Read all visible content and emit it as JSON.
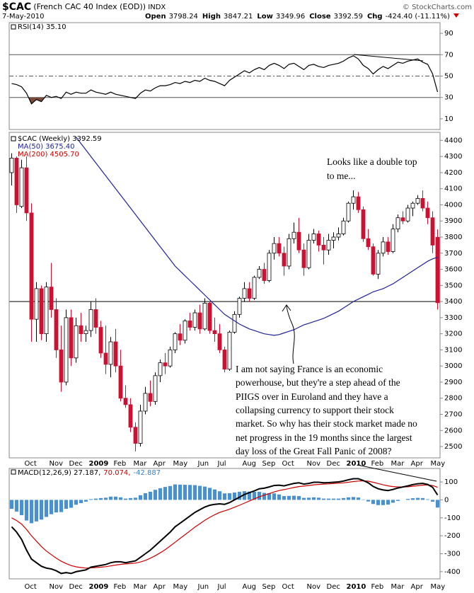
{
  "header": {
    "symbol": "$CAC",
    "name": "(French CAC 40 Index (EOD))",
    "exchange": "INDX",
    "date": "7-May-2010",
    "copyright": "© StockCharts.com",
    "quote": [
      {
        "label": "Open",
        "value": "3798.24"
      },
      {
        "label": "High",
        "value": "3847.21"
      },
      {
        "label": "Low",
        "value": "3349.96"
      },
      {
        "label": "Close",
        "value": "3392.59"
      },
      {
        "label": "Chg",
        "value": "-424.40 (-11.11%)"
      }
    ]
  },
  "chart_data": [
    {
      "type": "line",
      "legend": [
        {
          "text": "RSI(14) 35.10",
          "color": "#000000"
        }
      ],
      "legend_layout": "inline",
      "ylim": [
        0,
        100
      ],
      "yticks": [
        10,
        30,
        50,
        70,
        90
      ],
      "hlines": [
        {
          "value": 70,
          "color": "#555555"
        },
        {
          "value": 50,
          "color": "#555555",
          "dash": "6 3 2 3"
        },
        {
          "value": 30,
          "color": "#555555"
        }
      ],
      "fill_below": 30,
      "fill_color": "#7a4b3a",
      "series": [
        {
          "color": "#000000",
          "values": [
            43,
            42,
            40,
            34,
            24,
            28,
            26,
            32,
            30,
            31,
            29,
            35,
            33,
            35,
            34,
            34,
            37,
            35,
            34,
            33,
            35,
            33,
            32,
            31,
            30,
            29,
            34,
            37,
            36,
            39,
            41,
            41,
            42,
            44,
            43,
            45,
            44,
            46,
            45,
            48,
            46,
            45,
            43,
            41,
            46,
            49,
            52,
            55,
            53,
            56,
            58,
            56,
            60,
            62,
            60,
            57,
            61,
            62,
            59,
            56,
            60,
            61,
            59,
            58,
            60,
            61,
            62,
            64,
            67,
            69,
            66,
            60,
            57,
            52,
            56,
            59,
            57,
            60,
            63,
            62,
            64,
            65,
            66,
            63,
            61,
            52,
            35.1
          ]
        }
      ]
    },
    {
      "type": "candlestick",
      "legend": [
        {
          "text": "$CAC (Weekly) 3392.59",
          "color": "#000000"
        },
        {
          "text": "MA(50) 3675.40",
          "color": "#22229a"
        },
        {
          "text": "MA(200) 4505.70",
          "color": "#cc0000"
        }
      ],
      "legend_layout": "stacked",
      "ylim": [
        2430,
        4450
      ],
      "yticks": [
        2500,
        2600,
        2700,
        2800,
        2900,
        3000,
        3100,
        3200,
        3300,
        3400,
        3500,
        3600,
        3700,
        3800,
        3900,
        4000,
        4100,
        4200,
        4300,
        4400
      ],
      "hlines": [
        {
          "value": 3400,
          "color": "#000000"
        }
      ],
      "categories": [
        null,
        null,
        null,
        "Oct",
        null,
        null,
        null,
        null,
        "Nov",
        null,
        null,
        null,
        "Dec",
        null,
        null,
        null,
        "2009",
        null,
        null,
        null,
        null,
        "Feb",
        null,
        null,
        null,
        "Mar",
        null,
        null,
        null,
        "Apr",
        null,
        null,
        null,
        "May",
        null,
        null,
        null,
        null,
        "Jun",
        null,
        null,
        null,
        "Jul",
        null,
        null,
        null,
        null,
        "Aug",
        null,
        null,
        null,
        "Sep",
        null,
        null,
        null,
        "Oct",
        null,
        null,
        null,
        null,
        "Nov",
        null,
        null,
        null,
        "Dec",
        null,
        null,
        null,
        "2010",
        null,
        null,
        null,
        null,
        "Feb",
        null,
        null,
        null,
        "Mar",
        null,
        null,
        null,
        "Apr",
        null,
        null,
        null,
        "May",
        null
      ],
      "ohlc": {
        "open": [
          4200,
          4290,
          3990,
          4230,
          3950,
          3290,
          3480,
          3200,
          3490,
          3350,
          3100,
          2900,
          3300,
          3050,
          3250,
          3200,
          3220,
          3350,
          3240,
          3080,
          3010,
          3150,
          3000,
          2800,
          2760,
          2620,
          2520,
          2720,
          2830,
          2780,
          2940,
          3020,
          3000,
          3100,
          3200,
          3160,
          3280,
          3240,
          3330,
          3230,
          3390,
          3220,
          3200,
          3100,
          2980,
          3210,
          3320,
          3420,
          3480,
          3420,
          3550,
          3600,
          3530,
          3700,
          3760,
          3700,
          3620,
          3790,
          3830,
          3720,
          3610,
          3780,
          3820,
          3750,
          3720,
          3780,
          3800,
          3820,
          3900,
          4010,
          4050,
          3970,
          3790,
          3740,
          3570,
          3700,
          3770,
          3710,
          3850,
          3920,
          3900,
          3980,
          4010,
          4040,
          3980,
          3920,
          3798.24
        ],
        "high": [
          4320,
          4300,
          4280,
          4300,
          4010,
          3520,
          3500,
          3520,
          3640,
          3420,
          3250,
          3350,
          3350,
          3300,
          3330,
          3250,
          3400,
          3420,
          3280,
          3250,
          3180,
          3230,
          3100,
          2880,
          2800,
          2650,
          2760,
          2870,
          2910,
          2960,
          3040,
          3080,
          3120,
          3210,
          3260,
          3290,
          3330,
          3350,
          3380,
          3420,
          3400,
          3300,
          3260,
          3120,
          3220,
          3340,
          3430,
          3520,
          3520,
          3560,
          3620,
          3640,
          3720,
          3800,
          3800,
          3740,
          3820,
          3890,
          3920,
          3760,
          3820,
          3850,
          3840,
          3800,
          3820,
          3830,
          3860,
          3920,
          4020,
          4090,
          4080,
          3990,
          3850,
          3760,
          3720,
          3800,
          3800,
          3880,
          3940,
          3960,
          4000,
          4020,
          4060,
          4090,
          4020,
          3960,
          3847.21
        ],
        "low": [
          4120,
          3950,
          3980,
          3900,
          3150,
          3150,
          3160,
          3150,
          3300,
          3050,
          2840,
          2880,
          3000,
          3020,
          3150,
          3150,
          3180,
          3200,
          3050,
          2950,
          2930,
          2960,
          2780,
          2740,
          2590,
          2470,
          2500,
          2700,
          2750,
          2760,
          2900,
          2950,
          2990,
          3080,
          3130,
          3140,
          3220,
          3220,
          3200,
          3220,
          3200,
          3150,
          3080,
          2960,
          2970,
          3200,
          3300,
          3400,
          3400,
          3410,
          3540,
          3510,
          3520,
          3660,
          3680,
          3560,
          3600,
          3760,
          3700,
          3560,
          3600,
          3760,
          3710,
          3630,
          3690,
          3730,
          3780,
          3810,
          3890,
          3970,
          3950,
          3770,
          3720,
          3560,
          3540,
          3680,
          3690,
          3700,
          3830,
          3880,
          3890,
          3930,
          4000,
          3960,
          3880,
          3700,
          3349.96
        ],
        "close": [
          4290,
          4000,
          4230,
          3950,
          3290,
          3480,
          3200,
          3490,
          3350,
          3100,
          2900,
          3300,
          3050,
          3250,
          3200,
          3220,
          3350,
          3240,
          3080,
          3010,
          3150,
          3000,
          2800,
          2760,
          2620,
          2520,
          2720,
          2830,
          2780,
          2940,
          3020,
          3000,
          3100,
          3200,
          3160,
          3280,
          3240,
          3330,
          3230,
          3390,
          3220,
          3200,
          3100,
          2980,
          3210,
          3320,
          3420,
          3480,
          3420,
          3550,
          3600,
          3530,
          3700,
          3760,
          3700,
          3620,
          3790,
          3830,
          3720,
          3610,
          3780,
          3820,
          3750,
          3720,
          3780,
          3800,
          3820,
          3900,
          4010,
          4050,
          3970,
          3790,
          3740,
          3570,
          3700,
          3770,
          3710,
          3850,
          3920,
          3900,
          3980,
          4010,
          4040,
          3980,
          3920,
          3750,
          3392.59
        ],
        "up_color": "#ffffff",
        "down_color": "#cc1133"
      },
      "series": [
        {
          "color": "#22229a",
          "values": [
            null,
            null,
            null,
            null,
            null,
            null,
            null,
            null,
            null,
            null,
            null,
            null,
            null,
            4420,
            4380,
            4340,
            4300,
            4260,
            4220,
            4180,
            4140,
            4100,
            4060,
            4020,
            3980,
            3940,
            3900,
            3860,
            3820,
            3780,
            3740,
            3700,
            3660,
            3620,
            3590,
            3560,
            3530,
            3500,
            3470,
            3440,
            3410,
            3380,
            3350,
            3320,
            3300,
            3280,
            3260,
            3245,
            3230,
            3220,
            3210,
            3200,
            3195,
            3190,
            3195,
            3205,
            3215,
            3225,
            3240,
            3255,
            3265,
            3275,
            3285,
            3295,
            3310,
            3325,
            3340,
            3360,
            3380,
            3400,
            3415,
            3430,
            3445,
            3460,
            3470,
            3480,
            3495,
            3510,
            3530,
            3550,
            3570,
            3590,
            3610,
            3630,
            3650,
            3665,
            3675.4
          ]
        }
      ],
      "annotations": [
        "Looks like a double top",
        "to me...",
        "I am not saying France is an economic",
        "powerhouse, but they're a step ahead of the",
        "PIIGS over in Euroland and they have a",
        "collapsing currency to support their stock",
        "market. So why has their stock market made no",
        "net progress in the 19 months since the largest",
        "day loss of the Great Fall Panic of 2008?"
      ]
    },
    {
      "type": "line",
      "legend": [
        {
          "text": "MACD(12,26,9) 27.187,",
          "color": "#000000"
        },
        {
          "text": "70.074,",
          "color": "#cc0000"
        },
        {
          "text": "-42.887",
          "color": "#3a7dbf"
        }
      ],
      "legend_layout": "inline",
      "ylim": [
        -440,
        175
      ],
      "yticks": [
        -400,
        -300,
        -200,
        -100,
        0,
        100
      ],
      "categories": [
        null,
        null,
        null,
        "Oct",
        null,
        null,
        null,
        null,
        "Nov",
        null,
        null,
        null,
        "Dec",
        null,
        null,
        null,
        "2009",
        null,
        null,
        null,
        null,
        "Feb",
        null,
        null,
        null,
        "Mar",
        null,
        null,
        null,
        "Apr",
        null,
        null,
        null,
        "May",
        null,
        null,
        null,
        null,
        "Jun",
        null,
        null,
        null,
        "Jul",
        null,
        null,
        null,
        null,
        "Aug",
        null,
        null,
        null,
        "Sep",
        null,
        null,
        null,
        "Oct",
        null,
        null,
        null,
        null,
        "Nov",
        null,
        null,
        null,
        "Dec",
        null,
        null,
        null,
        "2010",
        null,
        null,
        null,
        null,
        "Feb",
        null,
        null,
        null,
        "Mar",
        null,
        null,
        null,
        "Apr",
        null,
        null,
        null,
        "May",
        null
      ],
      "series": [
        {
          "type": "bar",
          "color": "#4a8fcf",
          "values": [
            -50,
            -65,
            -85,
            -115,
            -130,
            -120,
            -110,
            -95,
            -80,
            -70,
            -68,
            -50,
            -44,
            -27,
            -18,
            -10,
            4,
            7,
            10,
            12,
            18,
            18,
            14,
            7,
            10,
            12,
            26,
            37,
            45,
            56,
            65,
            72,
            77,
            86,
            85,
            84,
            83,
            82,
            78,
            74,
            67,
            58,
            48,
            36,
            37,
            41,
            45,
            48,
            46,
            45,
            45,
            39,
            37,
            36,
            30,
            21,
            22,
            23,
            21,
            11,
            12,
            14,
            12,
            7,
            7,
            7,
            7,
            10,
            14,
            16,
            13,
            2,
            -9,
            -23,
            -29,
            -29,
            -26,
            -16,
            -6,
            0,
            5,
            9,
            11,
            10,
            3,
            -10,
            -42.887
          ]
        },
        {
          "type": "line",
          "color": "#cc0000",
          "values": [
            -100,
            -115,
            -135,
            -165,
            -200,
            -230,
            -260,
            -285,
            -305,
            -325,
            -342,
            -355,
            -366,
            -373,
            -377,
            -380,
            -379,
            -377,
            -375,
            -372,
            -368,
            -363,
            -359,
            -357,
            -355,
            -352,
            -346,
            -337,
            -325,
            -311,
            -295,
            -277,
            -257,
            -236,
            -215,
            -194,
            -173,
            -152,
            -133,
            -114,
            -97,
            -83,
            -70,
            -61,
            -52,
            -41,
            -30,
            -18,
            -6,
            5,
            17,
            26,
            35,
            44,
            52,
            57,
            63,
            69,
            74,
            77,
            80,
            84,
            86,
            88,
            89,
            91,
            93,
            95,
            98,
            102,
            105,
            106,
            104,
            98,
            91,
            84,
            78,
            74,
            72,
            72,
            73,
            76,
            79,
            82,
            83,
            80,
            70.074
          ]
        },
        {
          "type": "line",
          "color": "#000000",
          "width": 2,
          "values": [
            -150,
            -180,
            -220,
            -280,
            -330,
            -350,
            -370,
            -380,
            -385,
            -395,
            -410,
            -405,
            -410,
            -400,
            -395,
            -390,
            -375,
            -370,
            -365,
            -360,
            -350,
            -345,
            -345,
            -350,
            -345,
            -340,
            -320,
            -300,
            -280,
            -255,
            -230,
            -205,
            -180,
            -150,
            -130,
            -110,
            -90,
            -70,
            -55,
            -40,
            -30,
            -25,
            -22,
            -25,
            -15,
            0,
            15,
            30,
            40,
            50,
            62,
            65,
            72,
            80,
            82,
            78,
            85,
            92,
            95,
            88,
            92,
            98,
            98,
            95,
            96,
            98,
            100,
            105,
            112,
            118,
            118,
            108,
            95,
            75,
            62,
            55,
            52,
            58,
            66,
            72,
            78,
            85,
            90,
            92,
            86,
            70,
            27.187
          ]
        }
      ]
    }
  ]
}
